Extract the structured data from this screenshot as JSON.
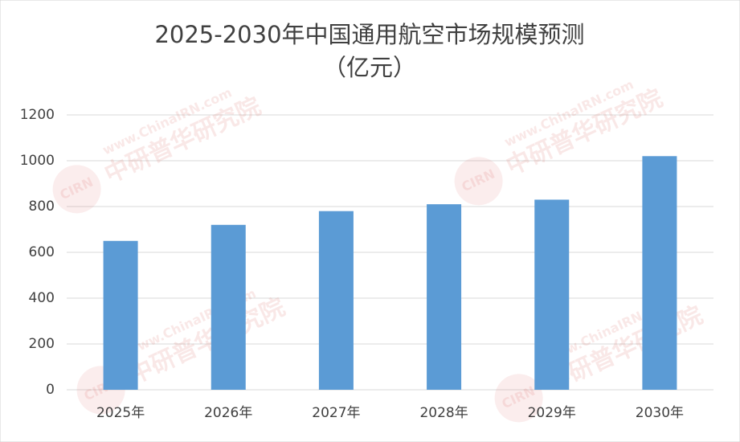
{
  "chart_data": {
    "type": "bar",
    "title": "2025-2030年中国通用航空市场规模预测",
    "subtitle": "（亿元）",
    "categories": [
      "2025年",
      "2026年",
      "2027年",
      "2028年",
      "2029年",
      "2030年"
    ],
    "values": [
      650,
      720,
      780,
      810,
      830,
      1020
    ],
    "color": "#5b9bd5",
    "ylim": [
      0,
      1200
    ],
    "yticks": [
      0,
      200,
      400,
      600,
      800,
      1000,
      1200
    ],
    "grid": true,
    "watermark": [
      "www.ChinaIRN.com",
      "中研普华研究院",
      "CIRN"
    ]
  }
}
